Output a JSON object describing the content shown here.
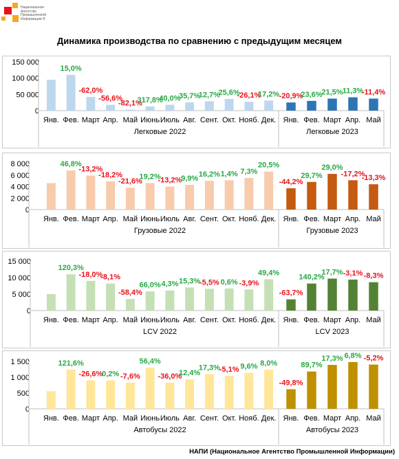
{
  "logo": {
    "lines": [
      "Национальное",
      "Агентство",
      "Промышленной",
      "Информации ®"
    ]
  },
  "title": "Динамика производства по сравнению с предыдущим месяцем",
  "footer": "НАПИ (Национальное Агентство Промышленной Информации)",
  "colors": {
    "green": "#27a844",
    "red": "#e8121a"
  },
  "chart_data": [
    {
      "type": "bar",
      "categories_2022": [
        "Янв.",
        "Фев.",
        "Март",
        "Апр.",
        "Май",
        "Июнь",
        "Июль",
        "Авг.",
        "Сент.",
        "Окт.",
        "Нояб.",
        "Дек."
      ],
      "categories_2023": [
        "Янв.",
        "Фев.",
        "Март",
        "Апр.",
        "Май"
      ],
      "series": [
        {
          "name": "Легковые 2022",
          "color": "#bdd7ee",
          "values": [
            95000,
            110000,
            42000,
            18000,
            3000,
            13000,
            18000,
            25000,
            29000,
            36000,
            27000,
            31000
          ],
          "labels": [
            "",
            "15,0%",
            "-62,0%",
            "-56,6%",
            "-82,1%",
            "317,8%",
            "40,0%",
            "35,7%",
            "12,7%",
            "25,6%",
            "-26,1%",
            "17,2%"
          ]
        },
        {
          "name": "Легковые 2023",
          "color": "#2e75b6",
          "values": [
            25000,
            30000,
            37000,
            41000,
            37000
          ],
          "labels": [
            "-20,9%",
            "23,6%",
            "21,5%",
            "11,3%",
            "-11,4%"
          ]
        }
      ],
      "yticks": [
        "150 000",
        "100 000",
        "50 000",
        "0"
      ],
      "ylim": [
        0,
        150000
      ]
    },
    {
      "type": "bar",
      "categories_2022": [
        "Янв.",
        "Фев.",
        "Март",
        "Апр.",
        "Май",
        "Июнь",
        "Июль",
        "Авг.",
        "Сент.",
        "Окт.",
        "Нояб.",
        "Дек."
      ],
      "categories_2023": [
        "Янв.",
        "Фев.",
        "Март",
        "Апр.",
        "Май"
      ],
      "series": [
        {
          "name": "Грузовые 2022",
          "color": "#f8cbad",
          "values": [
            4600,
            6800,
            5900,
            4900,
            3800,
            4600,
            4000,
            4300,
            5000,
            5100,
            5500,
            6600
          ],
          "labels": [
            "",
            "46,8%",
            "-13,2%",
            "-18,2%",
            "-21,6%",
            "19,2%",
            "-13,2%",
            "9,9%",
            "16,2%",
            "1,4%",
            "7,3%",
            "20,5%"
          ]
        },
        {
          "name": "Грузовые 2023",
          "color": "#c55a11",
          "values": [
            3700,
            4800,
            6200,
            5100,
            4400
          ],
          "labels": [
            "-44,2%",
            "29,7%",
            "29,0%",
            "-17,2%",
            "-13,3%"
          ]
        }
      ],
      "yticks": [
        "8 000",
        "6 000",
        "4 000",
        "2 000",
        "0"
      ],
      "ylim": [
        0,
        8000
      ]
    },
    {
      "type": "bar",
      "categories_2022": [
        "Янв.",
        "Фев.",
        "Март",
        "Апр.",
        "Май",
        "Июнь",
        "Июль",
        "Авг.",
        "Сент.",
        "Окт.",
        "Нояб.",
        "Дек."
      ],
      "categories_2023": [
        "Янв.",
        "Фев.",
        "Март",
        "Апр.",
        "Май"
      ],
      "series": [
        {
          "name": "LCV 2022",
          "color": "#c5e0b4",
          "values": [
            5000,
            11000,
            9000,
            8200,
            3500,
            5800,
            6100,
            7000,
            6600,
            6700,
            6400,
            9500
          ],
          "labels": [
            "",
            "120,3%",
            "-18,0%",
            "-8,1%",
            "-58,4%",
            "66,0%",
            "4,3%",
            "15,3%",
            "-5,5%",
            "0,6%",
            "-3,9%",
            "49,4%"
          ]
        },
        {
          "name": "LCV 2023",
          "color": "#548235",
          "values": [
            3400,
            8200,
            9700,
            9400,
            8600
          ],
          "labels": [
            "-63,7%",
            "140,2%",
            "17,7%",
            "-3,1%",
            "-8,3%"
          ]
        }
      ],
      "yticks": [
        "15 000",
        "10 000",
        "5 000",
        "0"
      ],
      "ylim": [
        0,
        15000
      ]
    },
    {
      "type": "bar",
      "categories_2022": [
        "Янв.",
        "Фев.",
        "Март",
        "Апр.",
        "Май",
        "Июнь",
        "Июль",
        "Авг.",
        "Сент.",
        "Окт.",
        "Нояб.",
        "Дек."
      ],
      "categories_2023": [
        "Янв.",
        "Фев.",
        "Март",
        "Апр.",
        "Май"
      ],
      "series": [
        {
          "name": "Автобусы 2022",
          "color": "#ffe699",
          "values": [
            560,
            1240,
            900,
            900,
            830,
            1300,
            830,
            930,
            1100,
            1040,
            1140,
            1240
          ],
          "labels": [
            "",
            "121,6%",
            "-26,6%",
            "0,2%",
            "-7,6%",
            "56,4%",
            "-36,0%",
            "12,4%",
            "17,3%",
            "-5,1%",
            "9,6%",
            "8,0%"
          ]
        },
        {
          "name": "Автобусы 2023",
          "color": "#bf9000",
          "values": [
            620,
            1180,
            1390,
            1480,
            1400
          ],
          "labels": [
            "-49,8%",
            "89,7%",
            "17,3%",
            "6,8%",
            "-5,2%"
          ]
        }
      ],
      "yticks": [
        "1 500",
        "1 000",
        "500",
        "0"
      ],
      "ylim": [
        0,
        1500
      ]
    }
  ]
}
